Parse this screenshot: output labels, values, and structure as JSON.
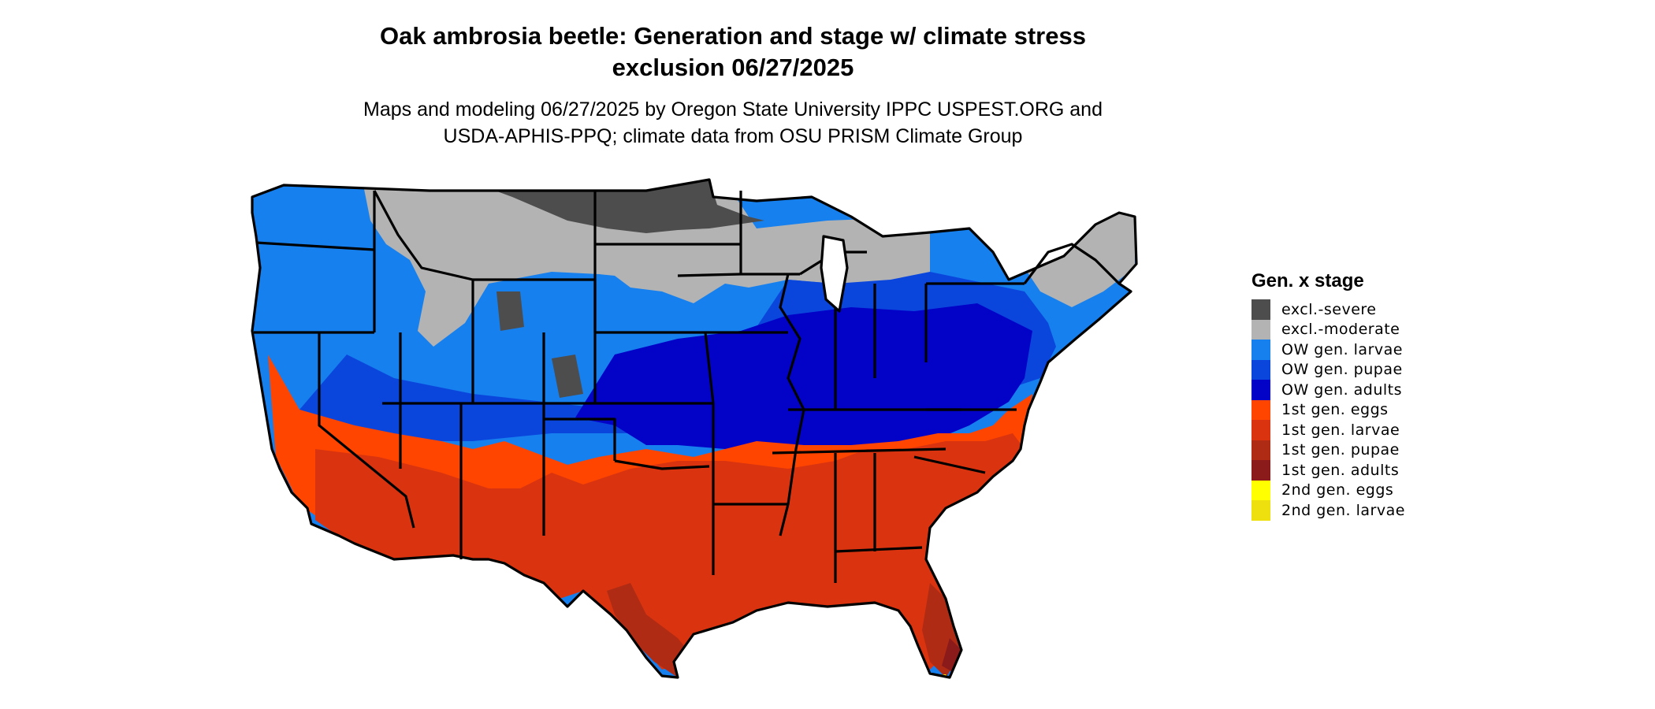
{
  "title": {
    "line1": "Oak ambrosia beetle: Generation and stage w/ climate stress",
    "line2": "exclusion 06/27/2025"
  },
  "subtitle": {
    "line1": "Maps and modeling 06/27/2025 by Oregon State University IPPC USPEST.ORG and",
    "line2": "USDA-APHIS-PPQ; climate data from OSU PRISM Climate Group"
  },
  "legend": {
    "title": "Gen. x stage",
    "items": [
      {
        "label": "excl.-severe",
        "color": "#4d4d4d"
      },
      {
        "label": "excl.-moderate",
        "color": "#b3b3b3"
      },
      {
        "label": "OW gen. larvae",
        "color": "#1680ee"
      },
      {
        "label": "OW gen. pupae",
        "color": "#0b46dc"
      },
      {
        "label": "OW gen. adults",
        "color": "#0303c8"
      },
      {
        "label": "1st gen. eggs",
        "color": "#ff4500"
      },
      {
        "label": "1st gen. larvae",
        "color": "#d9340f"
      },
      {
        "label": "1st gen. pupae",
        "color": "#b02b14"
      },
      {
        "label": "1st gen. adults",
        "color": "#8b1a1a"
      },
      {
        "label": "2nd gen. eggs",
        "color": "#ffff00"
      },
      {
        "label": "2nd gen. larvae",
        "color": "#eee00e"
      }
    ]
  }
}
